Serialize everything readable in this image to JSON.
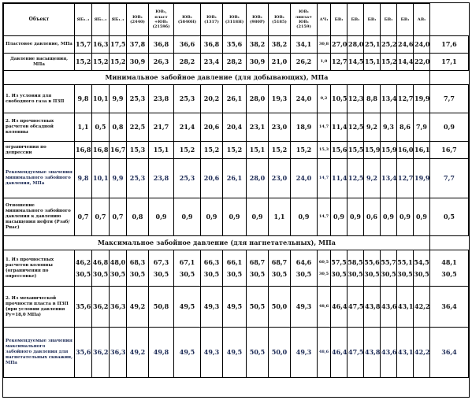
{
  "headers": [
    "Объект",
    "ЯБ₁₋₁",
    "ЯБ₁₋₁",
    "ЯБ₁₋₁",
    "ЮВ₁ (2440)",
    "ЮВ₁, пласт +ЮВ₁ (2159б)",
    "ЮВ₁ (5840Н)",
    "ЮВ₁ (1317)",
    "ЮВ₁ (3118Н)",
    "ЮВ₁ (980Р)",
    "ЮВ₁ (5185)",
    "ЮВ₁ линза+ ЮВ₁ (2159)",
    "АЧ₁",
    "БВ₁",
    "БВ₁",
    "БВ₁",
    "БВ₁",
    "БВ₁",
    "АВ₁"
  ],
  "rows_top": [
    {
      "label": "Пластовое давление, МПа",
      "values": [
        "15,7",
        "16,3",
        "17,5",
        "37,8",
        "36,8",
        "36,6",
        "36,8",
        "35,6",
        "38,2",
        "38,2",
        "34,1",
        "30,8",
        "27,0",
        "28,0",
        "25,1",
        "25,2",
        "24,6",
        "24,0",
        "17,6"
      ]
    },
    {
      "label": "Давление насыщения, МПа",
      "values": [
        "15,2",
        "15,2",
        "15,2",
        "30,9",
        "26,3",
        "28,2",
        "23,4",
        "28,2",
        "30,9",
        "21,0",
        "26,2",
        "1,0",
        "12,7",
        "14,5",
        "15,1",
        "15,2",
        "14,4",
        "22,0",
        "17,1"
      ]
    }
  ],
  "section_min": "Минимальное забойное давление (для добывающих), МПа",
  "rows_min": [
    {
      "label": "1. Из условия для свободного газа в ПЗП",
      "values": [
        "9,8",
        "10,1",
        "9,9",
        "25,3",
        "23,8",
        "25,3",
        "20,2",
        "26,1",
        "28,0",
        "19,3",
        "24,0",
        "0,2",
        "10,5",
        "12,3",
        "8,8",
        "13,4",
        "12,7",
        "19,9",
        "7,7"
      ]
    },
    {
      "label": "2. Из прочностных расчетов обсадной колонны",
      "values": [
        "1,1",
        "0,5",
        "0,8",
        "22,5",
        "21,7",
        "21,4",
        "20,6",
        "20,4",
        "23,1",
        "23,0",
        "18,9",
        "14,7",
        "11,4",
        "12,5",
        "9,2",
        "9,3",
        "8,6",
        "7,9",
        "0,9"
      ]
    },
    {
      "label": "ограничения по депрессии",
      "values": [
        "16,8",
        "16,8",
        "16,7",
        "15,3",
        "15,1",
        "15,2",
        "15,2",
        "15,2",
        "15,1",
        "15,2",
        "15,2",
        "15,3",
        "15,6",
        "15,5",
        "15,9",
        "15,9",
        "16,0",
        "16,1",
        "16,7"
      ]
    },
    {
      "label": "Рекомендуемые значения минимального забойного давления, МПа",
      "values": [
        "9,8",
        "10,1",
        "9,9",
        "25,3",
        "23,8",
        "25,3",
        "20,6",
        "26,1",
        "28,0",
        "23,0",
        "24,0",
        "14,7",
        "11,4",
        "12,5",
        "9,2",
        "13,4",
        "12,7",
        "19,9",
        "7,7"
      ],
      "recommended": true
    },
    {
      "label": "Отношение минимального забойного давления к давлению насыщения нефти (Рзаб/Рнас)",
      "values": [
        "0,7",
        "0,7",
        "0,7",
        "0,8",
        "0,9",
        "0,9",
        "0,9",
        "0,9",
        "0,9",
        "1,1",
        "0,9",
        "14,7",
        "0,9",
        "0,9",
        "0,6",
        "0,9",
        "0,9",
        "0,9",
        "0,5"
      ]
    }
  ],
  "section_max": "Максимальное забойное давление (для нагнетательных), МПа",
  "rows_max": [
    {
      "label": "1. Из прочностных расчетов колонны (ограничения по опрессовке)",
      "top": [
        "46,2",
        "46,8",
        "48,0",
        "68,3",
        "67,3",
        "67,1",
        "66,3",
        "66,1",
        "68,7",
        "68,7",
        "64,6",
        "60,5",
        "57,5",
        "58,5",
        "55,6",
        "55,7",
        "55,1",
        "54,5",
        "48,1"
      ],
      "bottom": [
        "30,5",
        "30,5",
        "30,5",
        "30,5",
        "30,5",
        "30,5",
        "30,5",
        "30,5",
        "30,5",
        "30,5",
        "30,5",
        "30,5",
        "30,5",
        "30,5",
        "30,5",
        "30,5",
        "30,5",
        "30,5",
        "30,5"
      ]
    },
    {
      "label": "2. Из механической прочности пласта в ПЗП (при условии давления Ру=18,0 МПа)",
      "values": [
        "35,6",
        "36,2",
        "36,3",
        "49,2",
        "50,8",
        "49,5",
        "49,3",
        "49,5",
        "50,5",
        "50,0",
        "49,3",
        "48,6",
        "46,4",
        "47,5",
        "43,8",
        "43,6",
        "43,1",
        "42,2",
        "36,4"
      ]
    },
    {
      "label": "Рекомендуемые значения максимального забойного давления для нагнетательных скважин, МПа",
      "values": [
        "35,6",
        "36,2",
        "36,3",
        "49,2",
        "49,8",
        "49,5",
        "49,3",
        "49,5",
        "50,5",
        "50,0",
        "49,3",
        "48,6",
        "46,4",
        "47,5",
        "43,8",
        "43,6",
        "43,1",
        "42,2",
        "36,4"
      ],
      "recommended": true
    }
  ]
}
